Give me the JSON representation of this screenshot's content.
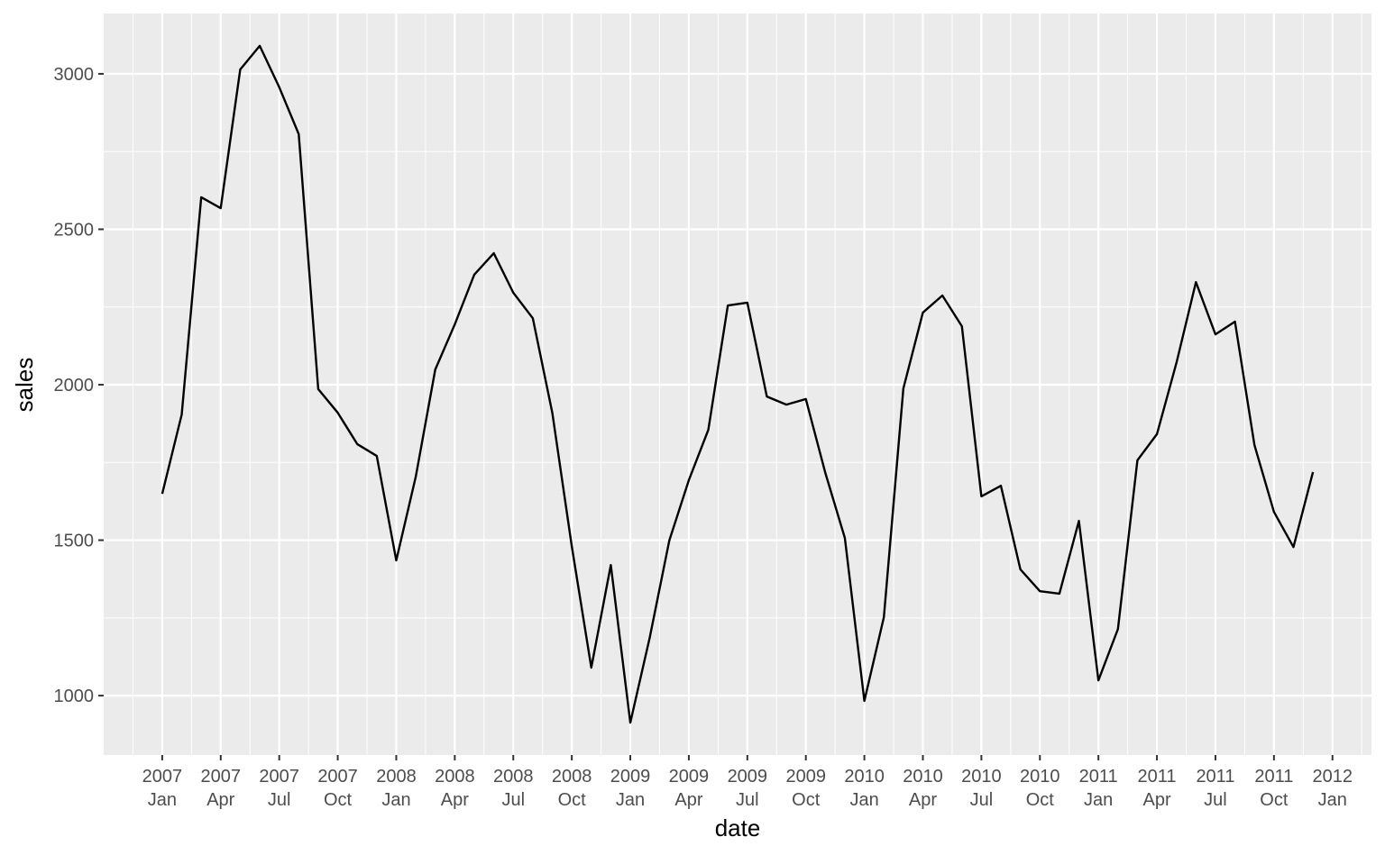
{
  "chart_data": {
    "type": "line",
    "x_label": "date",
    "y_label": "sales",
    "x": [
      "2007-01",
      "2007-02",
      "2007-03",
      "2007-04",
      "2007-05",
      "2007-06",
      "2007-07",
      "2007-08",
      "2007-09",
      "2007-10",
      "2007-11",
      "2007-12",
      "2008-01",
      "2008-02",
      "2008-03",
      "2008-04",
      "2008-05",
      "2008-06",
      "2008-07",
      "2008-08",
      "2008-09",
      "2008-10",
      "2008-11",
      "2008-12",
      "2009-01",
      "2009-02",
      "2009-03",
      "2009-04",
      "2009-05",
      "2009-06",
      "2009-07",
      "2009-08",
      "2009-09",
      "2009-10",
      "2009-11",
      "2009-12",
      "2010-01",
      "2010-02",
      "2010-03",
      "2010-04",
      "2010-05",
      "2010-06",
      "2010-07",
      "2010-08",
      "2010-09",
      "2010-10",
      "2010-11",
      "2010-12",
      "2011-01",
      "2011-02",
      "2011-03",
      "2011-04",
      "2011-05",
      "2011-06",
      "2011-07",
      "2011-08",
      "2011-09",
      "2011-10",
      "2011-11",
      "2011-12"
    ],
    "series": [
      {
        "name": "sales",
        "color": "#000000",
        "values": [
          1649,
          1904,
          2603,
          2568,
          3014,
          3090,
          2957,
          2806,
          1986,
          1910,
          1809,
          1771,
          1435,
          1704,
          2049,
          2194,
          2354,
          2423,
          2296,
          2214,
          1910,
          1480,
          1090,
          1420,
          913,
          1188,
          1499,
          1693,
          1855,
          2255,
          2264,
          1962,
          1936,
          1954,
          1716,
          1507,
          983,
          1252,
          1988,
          2232,
          2287,
          2188,
          1641,
          1675,
          1406,
          1336,
          1328,
          1562,
          1049,
          1214,
          1757,
          1841,
          2070,
          2330,
          2162,
          2203,
          1806,
          1591,
          1478,
          1719
        ]
      }
    ],
    "xlim": [
      "2006-10",
      "2012-03"
    ],
    "xticks": [
      {
        "value": "2007-01",
        "label": "2007\nJan"
      },
      {
        "value": "2007-04",
        "label": "2007\nApr"
      },
      {
        "value": "2007-07",
        "label": "2007\nJul"
      },
      {
        "value": "2007-10",
        "label": "2007\nOct"
      },
      {
        "value": "2008-01",
        "label": "2008\nJan"
      },
      {
        "value": "2008-04",
        "label": "2008\nApr"
      },
      {
        "value": "2008-07",
        "label": "2008\nJul"
      },
      {
        "value": "2008-10",
        "label": "2008\nOct"
      },
      {
        "value": "2009-01",
        "label": "2009\nJan"
      },
      {
        "value": "2009-04",
        "label": "2009\nApr"
      },
      {
        "value": "2009-07",
        "label": "2009\nJul"
      },
      {
        "value": "2009-10",
        "label": "2009\nOct"
      },
      {
        "value": "2010-01",
        "label": "2010\nJan"
      },
      {
        "value": "2010-04",
        "label": "2010\nApr"
      },
      {
        "value": "2010-07",
        "label": "2010\nJul"
      },
      {
        "value": "2010-10",
        "label": "2010\nOct"
      },
      {
        "value": "2011-01",
        "label": "2011\nJan"
      },
      {
        "value": "2011-04",
        "label": "2011\nApr"
      },
      {
        "value": "2011-07",
        "label": "2011\nJul"
      },
      {
        "value": "2011-10",
        "label": "2011\nOct"
      },
      {
        "value": "2012-01",
        "label": "2012\nJan"
      }
    ],
    "ylim": [
      809,
      3194
    ],
    "yticks": [
      1000,
      1500,
      2000,
      2500,
      3000
    ],
    "grid": true,
    "background": "#ebebeb"
  }
}
